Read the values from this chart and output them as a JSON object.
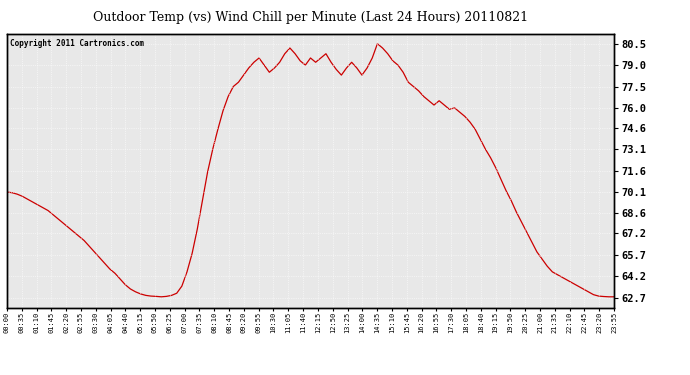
{
  "title": "Outdoor Temp (vs) Wind Chill per Minute (Last 24 Hours) 20110821",
  "copyright": "Copyright 2011 Cartronics.com",
  "line_color": "#cc0000",
  "background_color": "#ffffff",
  "plot_bg_color": "#e8e8e8",
  "grid_color": "#ffffff",
  "yticks": [
    62.7,
    64.2,
    65.7,
    67.2,
    68.6,
    70.1,
    71.6,
    73.1,
    74.6,
    76.0,
    77.5,
    79.0,
    80.5
  ],
  "ylim": [
    62.0,
    81.2
  ],
  "xtick_labels": [
    "00:00",
    "00:35",
    "01:10",
    "01:45",
    "02:20",
    "02:55",
    "03:30",
    "04:05",
    "04:40",
    "05:15",
    "05:50",
    "06:25",
    "07:00",
    "07:35",
    "08:10",
    "08:45",
    "09:20",
    "09:55",
    "10:30",
    "11:05",
    "11:40",
    "12:15",
    "12:50",
    "13:25",
    "14:00",
    "14:35",
    "15:10",
    "15:45",
    "16:20",
    "16:55",
    "17:30",
    "18:05",
    "18:40",
    "19:15",
    "19:50",
    "20:25",
    "21:00",
    "21:35",
    "22:10",
    "22:45",
    "23:20",
    "23:55"
  ],
  "data_y": [
    70.1,
    70.05,
    69.95,
    69.8,
    69.6,
    69.4,
    69.2,
    69.0,
    68.8,
    68.5,
    68.2,
    67.9,
    67.6,
    67.3,
    67.0,
    66.7,
    66.3,
    65.9,
    65.5,
    65.1,
    64.7,
    64.4,
    64.0,
    63.6,
    63.3,
    63.1,
    62.95,
    62.85,
    62.8,
    62.78,
    62.75,
    62.78,
    62.85,
    63.0,
    63.5,
    64.5,
    65.8,
    67.5,
    69.5,
    71.5,
    73.1,
    74.5,
    75.8,
    76.8,
    77.5,
    77.8,
    78.3,
    78.8,
    79.2,
    79.5,
    79.0,
    78.5,
    78.8,
    79.2,
    79.8,
    80.2,
    79.8,
    79.3,
    79.0,
    79.5,
    79.2,
    79.5,
    79.8,
    79.2,
    78.7,
    78.3,
    78.8,
    79.2,
    78.8,
    78.3,
    78.8,
    79.5,
    80.5,
    80.2,
    79.8,
    79.3,
    79.0,
    78.5,
    77.8,
    77.5,
    77.2,
    76.8,
    76.5,
    76.2,
    76.5,
    76.2,
    75.9,
    76.0,
    75.7,
    75.4,
    75.0,
    74.5,
    73.8,
    73.1,
    72.5,
    71.8,
    71.0,
    70.2,
    69.5,
    68.7,
    68.0,
    67.3,
    66.6,
    65.9,
    65.4,
    64.9,
    64.5,
    64.3,
    64.1,
    63.9,
    63.7,
    63.5,
    63.3,
    63.1,
    62.9,
    62.8,
    62.77,
    62.75,
    62.75
  ]
}
